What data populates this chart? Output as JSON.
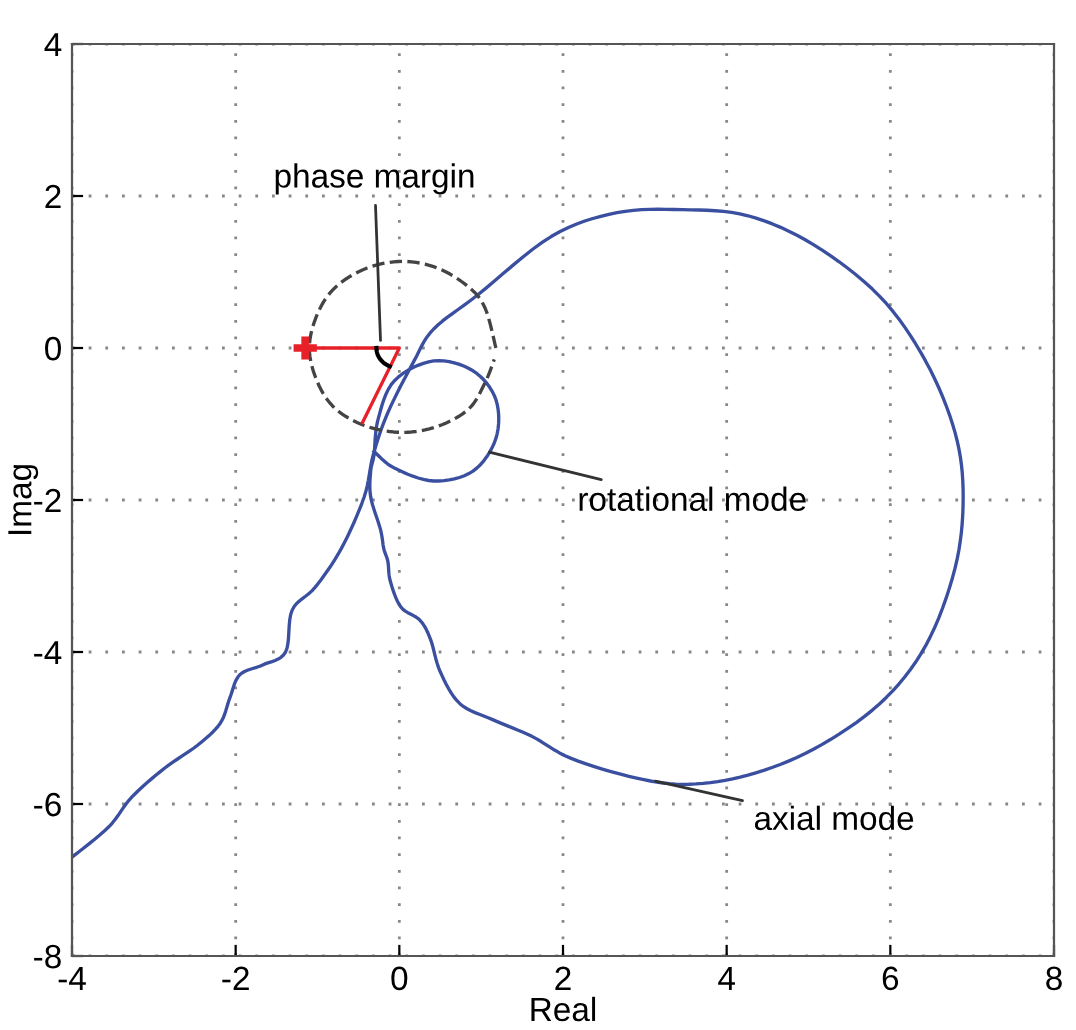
{
  "chart_data": {
    "type": "line",
    "xlabel": "Real",
    "ylabel": "Imag",
    "xlim": [
      -4,
      8
    ],
    "ylim": [
      -8,
      4
    ],
    "xticks": [
      -4,
      -2,
      0,
      2,
      4,
      6,
      8
    ],
    "yticks": [
      -8,
      -6,
      -4,
      -2,
      0,
      2,
      4
    ],
    "grid": true,
    "series": [
      {
        "color": "#3a4fa0",
        "line_style": "solid",
        "x": [
          -4.0,
          -3.55,
          -3.27,
          -2.87,
          -2.47,
          -2.19,
          -2.07,
          -1.95,
          -1.67,
          -1.39,
          -1.31,
          -1.03,
          -0.71,
          -0.43,
          -0.32,
          -0.14,
          0.18,
          0.42,
          0.96,
          1.86,
          2.66,
          3.46,
          4.26,
          5.06,
          5.87,
          6.43,
          6.79,
          6.89,
          6.79,
          6.43,
          5.87,
          5.06,
          4.26,
          3.54,
          2.9,
          2.1,
          1.62,
          1.14,
          0.74,
          0.5,
          0.38,
          0.25,
          0.02,
          -0.11,
          -0.14,
          -0.19,
          -0.23,
          -0.35,
          -0.35,
          -0.31,
          -0.26,
          -0.06,
          0.42,
          0.9,
          1.18,
          1.18,
          0.9,
          0.42,
          -0.06,
          -0.31
        ],
        "values": [
          -6.7,
          -6.3,
          -5.91,
          -5.53,
          -5.23,
          -4.94,
          -4.6,
          -4.3,
          -4.17,
          -4.0,
          -3.45,
          -3.15,
          -2.64,
          -1.96,
          -1.41,
          -0.85,
          -0.17,
          0.25,
          0.7,
          1.47,
          1.78,
          1.82,
          1.74,
          1.36,
          0.68,
          -0.17,
          -1.11,
          -1.96,
          -2.9,
          -3.92,
          -4.68,
          -5.28,
          -5.62,
          -5.74,
          -5.66,
          -5.4,
          -5.11,
          -4.89,
          -4.68,
          -4.26,
          -3.83,
          -3.58,
          -3.41,
          -3.07,
          -2.81,
          -2.64,
          -2.39,
          -1.96,
          -1.62,
          -1.41,
          -0.94,
          -0.43,
          -0.17,
          -0.3,
          -0.68,
          -1.19,
          -1.62,
          -1.75,
          -1.58,
          -1.36
        ]
      },
      {
        "color": "#444444",
        "line_style": "dashed",
        "x": [
          1.18,
          1.05,
          0.85,
          0.47,
          0.04,
          -0.4,
          -0.78,
          -1.0,
          -1.1,
          -1.0,
          -0.78,
          -0.4,
          0.04,
          0.47,
          0.85,
          1.05,
          1.16
        ],
        "values": [
          0.0,
          0.52,
          0.8,
          1.05,
          1.14,
          1.05,
          0.8,
          0.45,
          0.0,
          -0.45,
          -0.8,
          -1.03,
          -1.11,
          -1.03,
          -0.8,
          -0.45,
          -0.15
        ]
      },
      {
        "color": "#e8202a",
        "line_style": "solid",
        "x": [
          -1.15,
          0.0,
          -0.45
        ],
        "values": [
          0.0,
          0.0,
          -0.98
        ]
      },
      {
        "type": "scatter",
        "color": "#e8202a",
        "marker": "cross",
        "x": [
          -1.15
        ],
        "values": [
          0.0
        ]
      }
    ],
    "annotations": [
      {
        "text": "phase margin",
        "x": -0.23,
        "y": 0.1
      },
      {
        "text": "rotational mode",
        "x": 1.1,
        "y": -1.37
      },
      {
        "text": "axial mode",
        "x": 3.13,
        "y": -5.7
      }
    ]
  }
}
